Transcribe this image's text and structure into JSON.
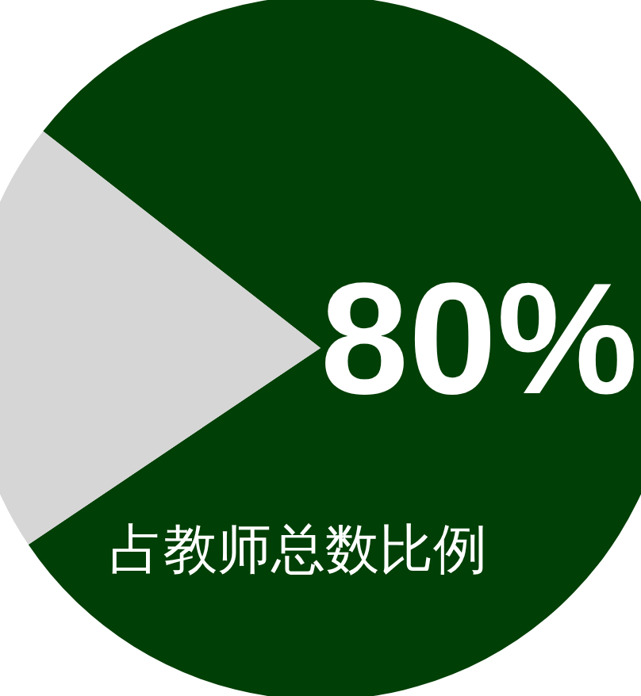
{
  "chart_data": {
    "type": "pie",
    "categories": [
      null,
      null
    ],
    "values": [
      80,
      20
    ],
    "colors": [
      "#003f06",
      "#d6d6d6"
    ],
    "value_labels": [
      "80%",
      null
    ],
    "annotations": [
      "占教师总数比例"
    ]
  }
}
